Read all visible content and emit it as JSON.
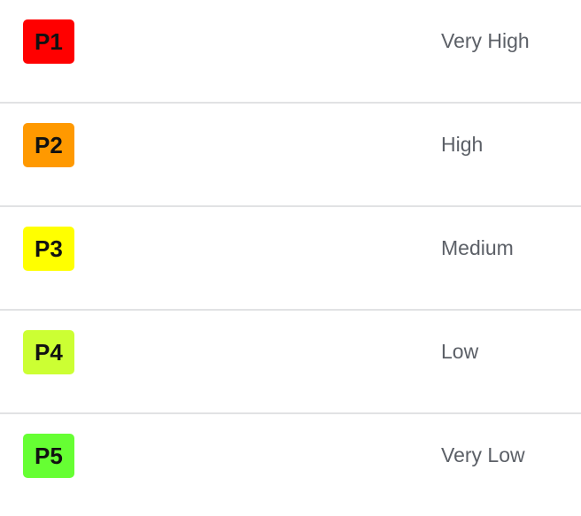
{
  "priorities": [
    {
      "code": "P1",
      "label": "Very High",
      "color": "#ff0000"
    },
    {
      "code": "P2",
      "label": "High",
      "color": "#ff9900"
    },
    {
      "code": "P3",
      "label": "Medium",
      "color": "#ffff00"
    },
    {
      "code": "P4",
      "label": "Low",
      "color": "#ccff33"
    },
    {
      "code": "P5",
      "label": "Very Low",
      "color": "#66ff33"
    }
  ]
}
